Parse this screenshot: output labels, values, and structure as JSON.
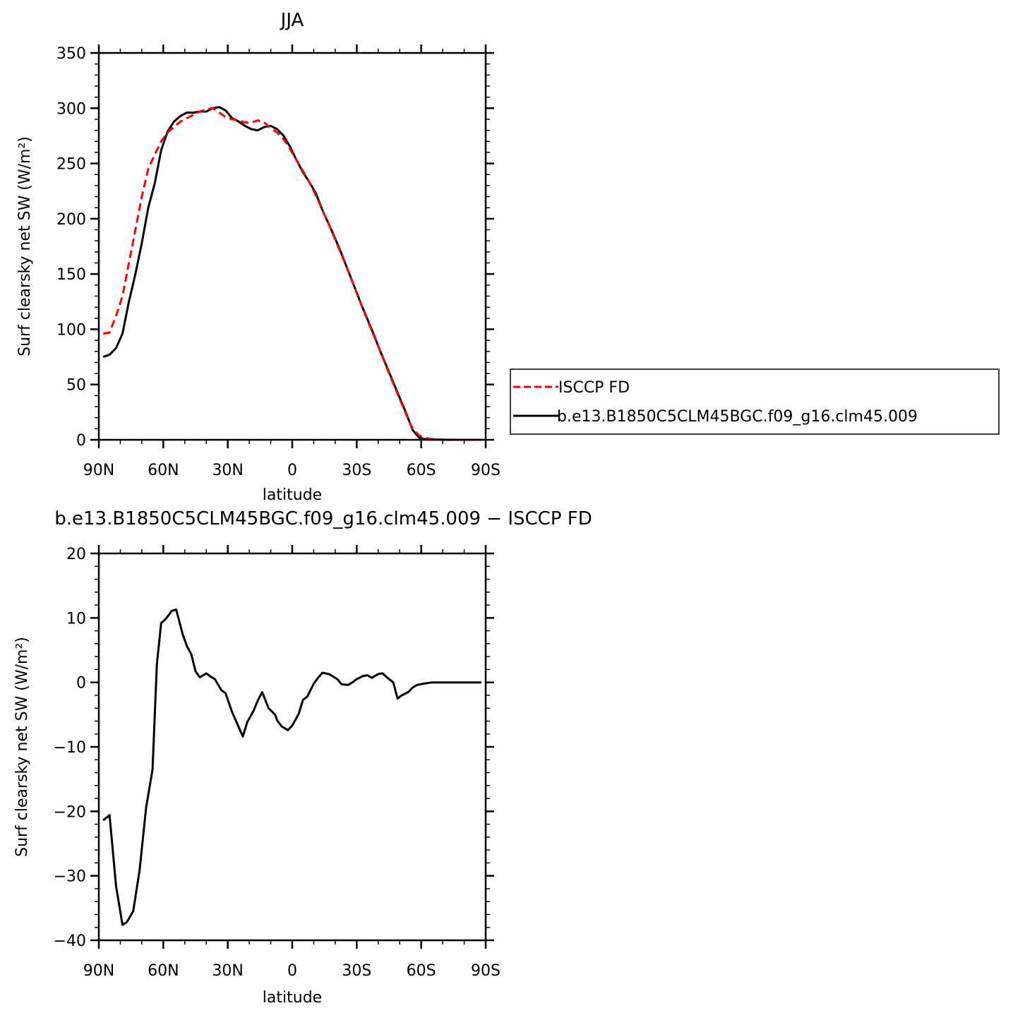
{
  "chart_data": [
    {
      "type": "line",
      "title": "JJA",
      "xlabel": "latitude",
      "ylabel": "Surf clearsky net SW (W/m²)",
      "xlim": [
        90,
        -90
      ],
      "ylim": [
        0,
        350
      ],
      "x_ticks": [
        {
          "value": 90,
          "label": "90N"
        },
        {
          "value": 60,
          "label": "60N"
        },
        {
          "value": 30,
          "label": "30N"
        },
        {
          "value": 0,
          "label": "0"
        },
        {
          "value": -30,
          "label": "30S"
        },
        {
          "value": -60,
          "label": "60S"
        },
        {
          "value": -90,
          "label": "90S"
        }
      ],
      "y_ticks": [
        0,
        50,
        100,
        150,
        200,
        250,
        300,
        350
      ],
      "legend_position": "right",
      "series": [
        {
          "name": "ISCCP FD",
          "color": "#ff0000",
          "dash": "dashed",
          "x": [
            88,
            85,
            82,
            79,
            76,
            73,
            70,
            67,
            64,
            61,
            58,
            55,
            52,
            49,
            46,
            43,
            40,
            37,
            34,
            31,
            28,
            25,
            22,
            19,
            16,
            13,
            10,
            7,
            4,
            1,
            -2,
            -5,
            -8,
            -11,
            -14,
            -17,
            -20,
            -23,
            -26,
            -29,
            -32,
            -35,
            -38,
            -41,
            -44,
            -47,
            -50,
            -53,
            -56,
            -59,
            -62,
            -65,
            -68,
            -71,
            -74,
            -77,
            -80,
            -83,
            -86,
            -88
          ],
          "y": [
            96,
            97,
            112,
            130,
            160,
            190,
            220,
            245,
            258,
            270,
            278,
            283,
            288,
            291,
            294,
            297,
            299,
            300,
            296,
            292,
            290,
            289,
            287,
            287,
            289,
            287,
            282,
            278,
            272,
            263,
            253,
            243,
            233,
            221,
            208,
            195,
            181,
            167,
            153,
            138,
            123,
            108,
            94,
            80,
            65,
            51,
            37,
            23,
            10,
            4,
            1.5,
            0.8,
            0.3,
            0.2,
            0.1,
            0,
            0,
            0,
            0,
            0
          ]
        },
        {
          "name": "b.e13.B1850C5CLM45BGC.f09_g16.clm45.009",
          "color": "#000000",
          "dash": "solid",
          "x": [
            88,
            85,
            82,
            79,
            76,
            73,
            70,
            67,
            64,
            61,
            58,
            55,
            52,
            49,
            46,
            43,
            40,
            37,
            34,
            31,
            28,
            25,
            22,
            19,
            16,
            13,
            10,
            7,
            4,
            1,
            -2,
            -5,
            -8,
            -11,
            -14,
            -17,
            -20,
            -23,
            -26,
            -29,
            -32,
            -35,
            -38,
            -41,
            -44,
            -47,
            -50,
            -53,
            -56,
            -59,
            -62,
            -65,
            -68,
            -71,
            -74,
            -77,
            -80,
            -83,
            -86,
            -88
          ],
          "y": [
            75,
            77,
            83,
            96,
            125,
            150,
            178,
            210,
            232,
            262,
            279,
            288,
            293,
            296,
            296,
            297,
            297,
            300,
            301,
            298,
            291,
            288,
            284,
            281,
            280,
            283,
            284,
            281,
            275,
            265,
            253,
            242,
            233,
            223,
            208,
            195,
            182,
            168,
            153,
            138,
            123,
            109,
            95,
            80,
            66,
            52,
            38,
            24,
            9,
            2,
            0.5,
            0.2,
            0.1,
            0,
            0,
            0,
            0,
            0,
            0,
            0
          ]
        }
      ]
    },
    {
      "type": "line",
      "title": "b.e13.B1850C5CLM45BGC.f09_g16.clm45.009 − ISCCP FD",
      "xlabel": "latitude",
      "ylabel": "Surf clearsky net SW (W/m²)",
      "xlim": [
        90,
        -90
      ],
      "ylim": [
        -40,
        20
      ],
      "x_ticks": [
        {
          "value": 90,
          "label": "90N"
        },
        {
          "value": 60,
          "label": "60N"
        },
        {
          "value": 30,
          "label": "30N"
        },
        {
          "value": 0,
          "label": "0"
        },
        {
          "value": -30,
          "label": "30S"
        },
        {
          "value": -60,
          "label": "60S"
        },
        {
          "value": -90,
          "label": "90S"
        }
      ],
      "y_ticks": [
        -40,
        -30,
        -20,
        -10,
        0,
        10,
        20
      ],
      "series": [
        {
          "color": "#000000",
          "x": [
            88,
            85,
            82,
            79,
            77,
            74,
            71,
            68,
            65,
            63,
            61,
            59,
            56,
            54,
            51,
            49,
            47,
            45,
            43,
            40,
            38,
            36,
            33,
            31,
            28,
            26,
            23,
            21,
            18,
            16,
            14,
            11,
            8,
            7,
            5,
            2,
            0,
            -3,
            -5,
            -7,
            -10,
            -12,
            -14,
            -17,
            -19,
            -21,
            -23,
            -26,
            -28,
            -30,
            -33,
            -35,
            -37,
            -40,
            -42,
            -44,
            -47,
            -49,
            -51,
            -54,
            -56,
            -58,
            -61,
            -63,
            -65,
            -68,
            -70,
            -72,
            -75,
            -77,
            -79,
            -82,
            -84,
            -86,
            -88
          ],
          "y": [
            -21.4,
            -20.6,
            -31.6,
            -37.6,
            -37.2,
            -35.5,
            -29.1,
            -19.4,
            -13.5,
            2.8,
            9.2,
            9.8,
            11.1,
            11.3,
            7.5,
            5.6,
            4.4,
            1.7,
            0.8,
            1.4,
            0.9,
            0.5,
            -1.2,
            -1.7,
            -4.6,
            -6.1,
            -8.4,
            -6.2,
            -4.4,
            -2.8,
            -1.5,
            -4,
            -5,
            -5.9,
            -6.8,
            -7.4,
            -6.7,
            -4.9,
            -2.7,
            -2.2,
            -0.2,
            0.7,
            1.5,
            1.3,
            0.9,
            0.5,
            -0.3,
            -0.4,
            0,
            0.5,
            1,
            1.1,
            0.7,
            1.3,
            1.4,
            0.8,
            0,
            -2.5,
            -2,
            -1.5,
            -0.8,
            -0.4,
            -0.2,
            -0.1,
            0,
            0,
            0,
            0,
            0,
            0,
            0,
            0,
            0,
            0,
            0
          ]
        }
      ]
    }
  ]
}
